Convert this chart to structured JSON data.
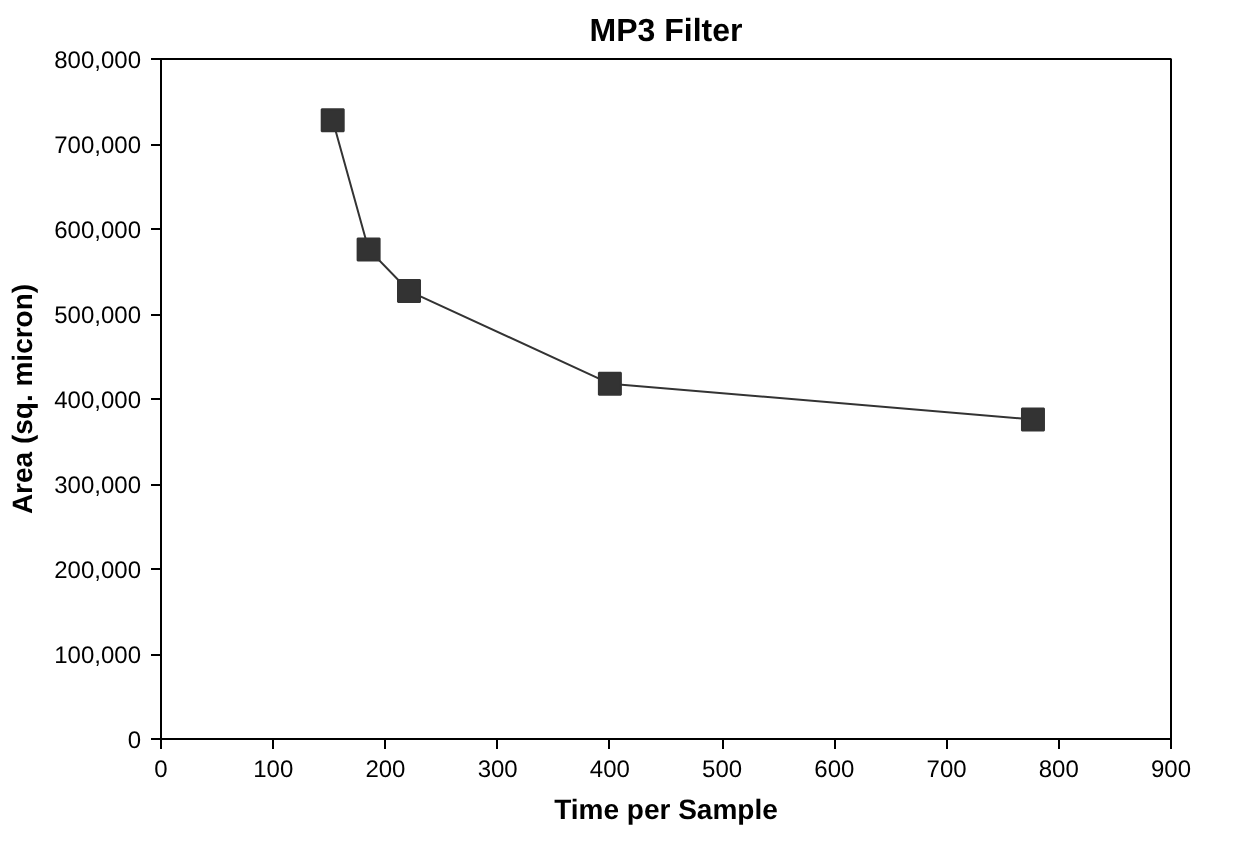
{
  "chart_data": {
    "type": "line",
    "title": "MP3 Filter",
    "xlabel": "Time per Sample",
    "ylabel": "Area (sq. micron)",
    "x": [
      153,
      185,
      221,
      400,
      777
    ],
    "series": [
      {
        "color": "#333333",
        "values": [
          728000,
          576000,
          527000,
          418000,
          376000
        ]
      }
    ],
    "xlim": [
      0,
      900
    ],
    "xticks": [
      0,
      100,
      200,
      300,
      400,
      500,
      600,
      700,
      800,
      900
    ],
    "ylim": [
      0,
      800000
    ],
    "yticks": [
      0,
      {
        "value": 100000,
        "label": "100,000"
      },
      {
        "value": 200000,
        "label": "200,000"
      },
      {
        "value": 300000,
        "label": "300,000"
      },
      {
        "value": 400000,
        "label": "400,000"
      },
      {
        "value": 500000,
        "label": "500,000"
      },
      {
        "value": 600000,
        "label": "600,000"
      },
      {
        "value": 700000,
        "label": "700,000"
      },
      {
        "value": 800000,
        "label": "800,000"
      }
    ],
    "grid": false,
    "marker": "square",
    "line_style": "solid"
  }
}
